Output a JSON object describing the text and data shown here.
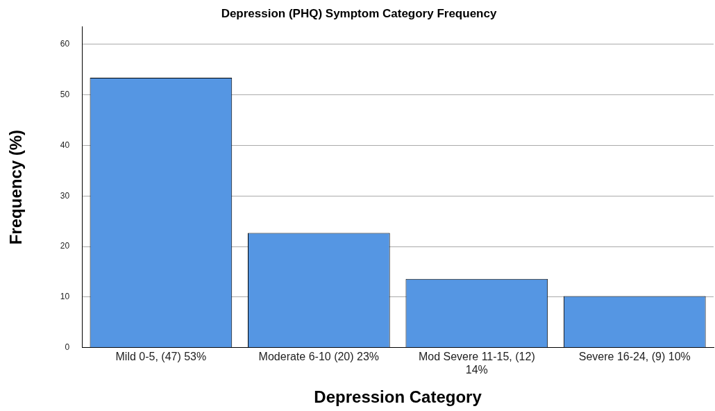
{
  "chart_data": {
    "type": "bar",
    "title": "Depression (PHQ) Symptom Category Frequency",
    "xlabel": "Depression Category",
    "ylabel": "Frequency (%)",
    "categories": [
      "Mild 0-5, (47) 53%",
      "Moderate 6-10 (20) 23%",
      "Mod Severe 11-15, (12) 14%",
      "Severe 16-24, (9) 10%"
    ],
    "values": [
      53.4,
      22.7,
      13.6,
      10.2
    ],
    "color": "#5596e3",
    "ylim": [
      0,
      63.5
    ],
    "yticks": [
      0,
      10,
      20,
      30,
      40,
      50,
      60
    ],
    "grid": "y",
    "legend": false
  }
}
